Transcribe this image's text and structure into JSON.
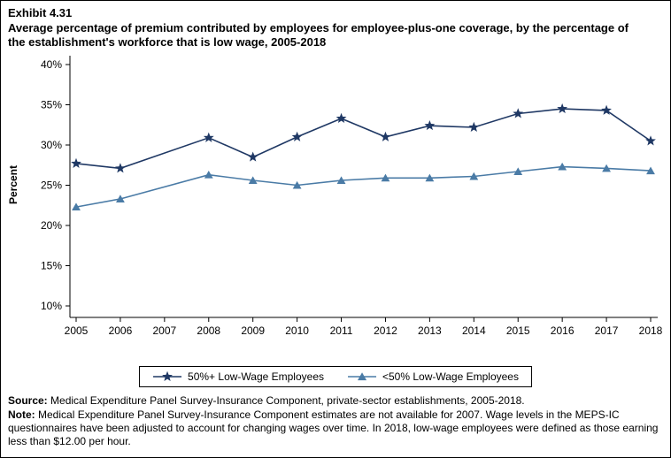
{
  "header": {
    "exhibit": "Exhibit 4.31",
    "title": "Average percentage of premium contributed by employees for employee-plus-one coverage, by the percentage of the establishment's workforce that is low wage, 2005-2018"
  },
  "chart_data": {
    "type": "line",
    "title": "Average percentage of premium contributed by employees for employee-plus-one coverage, by the percentage of the establishment's workforce that is low wage, 2005-2018",
    "xlabel": "",
    "ylabel": "Percent",
    "ylim": [
      10,
      40
    ],
    "grid": false,
    "legend_position": "bottom",
    "x": [
      2005,
      2006,
      2007,
      2008,
      2009,
      2010,
      2011,
      2012,
      2013,
      2014,
      2015,
      2016,
      2017,
      2018
    ],
    "yticks": [
      {
        "value": 10,
        "label": "10%"
      },
      {
        "value": 15,
        "label": "15%"
      },
      {
        "value": 20,
        "label": "20%"
      },
      {
        "value": 25,
        "label": "25%"
      },
      {
        "value": 30,
        "label": "30%"
      },
      {
        "value": 35,
        "label": "35%"
      },
      {
        "value": 40,
        "label": "40%"
      }
    ],
    "series": [
      {
        "name": "50%+ Low-Wage Employees",
        "marker": "star",
        "color": "#1f3864",
        "values": [
          27.7,
          27.1,
          null,
          30.9,
          28.5,
          31.0,
          33.3,
          31.0,
          32.4,
          32.2,
          33.9,
          34.5,
          34.3,
          30.5
        ]
      },
      {
        "name": "<50% Low-Wage Employees",
        "marker": "triangle",
        "color": "#4a7ba6",
        "values": [
          22.3,
          23.3,
          null,
          26.3,
          25.6,
          25.0,
          25.6,
          25.9,
          25.9,
          26.1,
          26.7,
          27.3,
          27.1,
          26.8
        ]
      }
    ]
  },
  "footer": {
    "source_label": "Source:",
    "source_text": " Medical Expenditure Panel Survey-Insurance Component, private-sector establishments, 2005-2018.",
    "note_label": "Note:",
    "note_text": " Medical Expenditure Panel Survey-Insurance Component estimates are not available for 2007. Wage levels in the MEPS-IC questionnaires have been adjusted to account for changing wages over time. In 2018, low-wage employees were defined as those earning less than $12.00 per hour."
  }
}
